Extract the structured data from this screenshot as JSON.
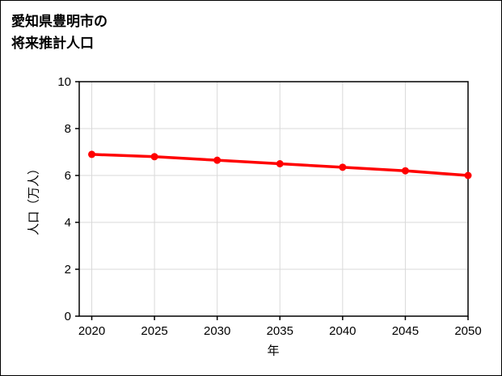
{
  "title": {
    "line1": "愛知県豊明市の",
    "line2": "将来推計人口"
  },
  "chart_data": {
    "type": "line",
    "title": "愛知県豊明市の将来推計人口",
    "xlabel": "年",
    "ylabel": "人口（万人）",
    "x": [
      2020,
      2025,
      2030,
      2035,
      2040,
      2045,
      2050
    ],
    "series": [
      {
        "name": "将来推計人口",
        "values": [
          6.9,
          6.8,
          6.65,
          6.5,
          6.35,
          6.2,
          6.0
        ]
      }
    ],
    "xlim": [
      2019,
      2050
    ],
    "ylim": [
      0,
      10
    ],
    "xticks": [
      2020,
      2025,
      2030,
      2035,
      2040,
      2045,
      2050
    ],
    "yticks": [
      0,
      2,
      4,
      6,
      8,
      10
    ],
    "grid": true,
    "legend_position": "none",
    "line_color": "#ff0000",
    "marker": "circle"
  }
}
